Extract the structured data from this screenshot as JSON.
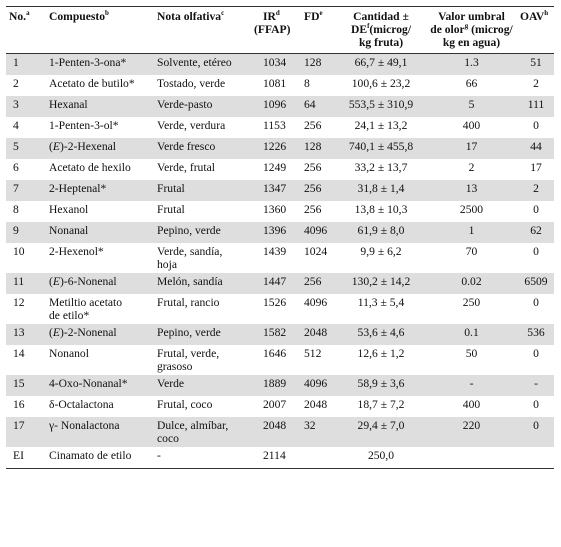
{
  "table": {
    "headers": [
      {
        "text": "No.",
        "sup": "a"
      },
      {
        "text": "Compuesto",
        "sup": "b"
      },
      {
        "text": "Nota olfativa",
        "sup": "c"
      },
      {
        "text": "IR",
        "sup": "d",
        "text2": "(FFAP)"
      },
      {
        "text": "FD",
        "sup": "e"
      },
      {
        "text": "Cantidad ±",
        "text2a": "DE",
        "sup": "f",
        "text2b": "(microg/",
        "text3": "kg fruta)"
      },
      {
        "text": "Valor umbral",
        "text2a": "de olor",
        "sup": "g",
        "text2b": " (microg/",
        "text3": "kg en agua)"
      },
      {
        "text": "OAV",
        "sup": "h"
      }
    ],
    "rows": [
      {
        "no": "1",
        "compound": "1-Penten-3-ona*",
        "note": "Solvente, etéreo",
        "ir": "1034",
        "fd": "128",
        "qty": "66,7 ± 49,1",
        "thr": "1.3",
        "oav": "51",
        "shaded": true
      },
      {
        "no": "2",
        "compound": "Acetato de butilo*",
        "note": "Tostado, verde",
        "ir": "1081",
        "fd": "8",
        "qty": "100,6 ± 23,2",
        "thr": "66",
        "oav": "2",
        "shaded": false
      },
      {
        "no": "3",
        "compound": "Hexanal",
        "note": "Verde-pasto",
        "ir": "1096",
        "fd": "64",
        "qty": "553,5 ± 310,9",
        "thr": "5",
        "oav": "111",
        "shaded": true
      },
      {
        "no": "4",
        "compound": "1-Penten-3-ol*",
        "note": "Verde, verdura",
        "ir": "1153",
        "fd": "256",
        "qty": "24,1 ± 13,2",
        "thr": "400",
        "oav": "0",
        "shaded": false
      },
      {
        "no": "5",
        "compound_prefix": "(E)",
        "compound": "-2-Hexenal",
        "note": "Verde fresco",
        "ir": "1226",
        "fd": "128",
        "qty": "740,1 ± 455,8",
        "thr": "17",
        "oav": "44",
        "shaded": true
      },
      {
        "no": "6",
        "compound": "Acetato de hexilo",
        "note": "Verde, frutal",
        "ir": "1249",
        "fd": "256",
        "qty": "33,2 ± 13,7",
        "thr": "2",
        "oav": "17",
        "shaded": false
      },
      {
        "no": "7",
        "compound": "2-Heptenal*",
        "note": "Frutal",
        "ir": "1347",
        "fd": "256",
        "qty": "31,8 ± 1,4",
        "thr": "13",
        "oav": "2",
        "shaded": true
      },
      {
        "no": "8",
        "compound": "Hexanol",
        "note": "Frutal",
        "ir": "1360",
        "fd": "256",
        "qty": "13,8 ± 10,3",
        "thr": "2500",
        "oav": "0",
        "shaded": false
      },
      {
        "no": "9",
        "compound": "Nonanal",
        "note": "Pepino, verde",
        "ir": "1396",
        "fd": "4096",
        "qty": "61,9 ± 8,0",
        "thr": "1",
        "oav": "62",
        "shaded": true
      },
      {
        "no": "10",
        "compound": "2-Hexenol*",
        "note": "Verde, sandía,",
        "note2": "hoja",
        "ir": "1439",
        "fd": "1024",
        "qty": "9,9 ± 6,2",
        "thr": "70",
        "oav": "0",
        "shaded": false
      },
      {
        "no": "11",
        "compound_prefix": "(E)",
        "compound": "-6-Nonenal",
        "note": "Melón, sandía",
        "ir": "1447",
        "fd": "256",
        "qty": "130,2 ± 14,2",
        "thr": "0.02",
        "oav": "6509",
        "shaded": true
      },
      {
        "no": "12",
        "compound": "Metiltio acetato",
        "compound2": "de etilo*",
        "note": "Frutal, rancio",
        "ir": "1526",
        "fd": "4096",
        "qty": "11,3 ± 5,4",
        "thr": "250",
        "oav": "0",
        "shaded": false
      },
      {
        "no": "13",
        "compound_prefix": "(E)",
        "compound": "-2-Nonenal",
        "note": "Pepino, verde",
        "ir": "1582",
        "fd": "2048",
        "qty": "53,6 ± 4,6",
        "thr": "0.1",
        "oav": "536",
        "shaded": true
      },
      {
        "no": "14",
        "compound": "Nonanol",
        "note": "Frutal, verde,",
        "note2": "grasoso",
        "ir": "1646",
        "fd": "512",
        "qty": "12,6 ± 1,2",
        "thr": "50",
        "oav": "0",
        "shaded": false
      },
      {
        "no": "15",
        "compound": "4-Oxo-Nonanal*",
        "note": "Verde",
        "ir": "1889",
        "fd": "4096",
        "qty": "58,9 ± 3,6",
        "thr": "-",
        "oav": "-",
        "shaded": true
      },
      {
        "no": "16",
        "compound": "δ-Octalactona",
        "note": "Frutal, coco",
        "ir": "2007",
        "fd": "2048",
        "qty": "18,7 ± 7,2",
        "thr": "400",
        "oav": "0",
        "shaded": false
      },
      {
        "no": "17",
        "compound": "γ- Nonalactona",
        "note": "Dulce, almíbar,",
        "note2": "coco",
        "ir": "2048",
        "fd": "32",
        "qty": "29,4 ± 7,0",
        "thr": "220",
        "oav": "0",
        "shaded": true
      },
      {
        "no": "EI",
        "compound": "Cinamato de etilo",
        "note": "-",
        "ir": "2114",
        "fd": "",
        "qty": "250,0",
        "thr": "",
        "oav": "",
        "shaded": false
      }
    ]
  }
}
